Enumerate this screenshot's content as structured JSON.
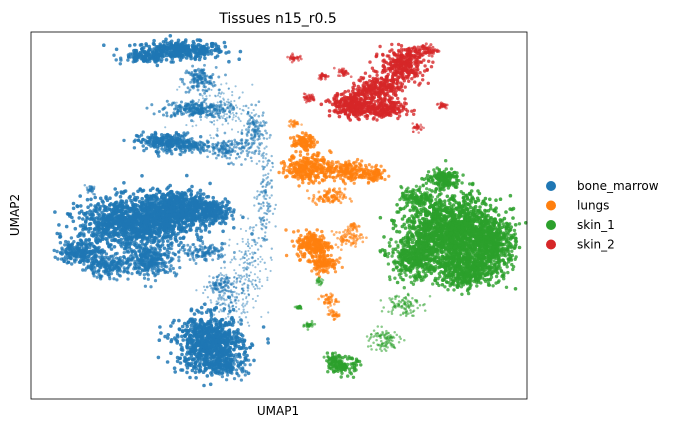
{
  "chart_data": {
    "type": "scatter",
    "title": "Tissues n15_r0.5",
    "xlabel": "UMAP1",
    "ylabel": "UMAP2",
    "xticks": [],
    "yticks": [],
    "xlim": [
      0,
      100
    ],
    "ylim": [
      0,
      100
    ],
    "grid": false,
    "legend_position": "right-outside",
    "legend": [
      {
        "name": "bone_marrow",
        "color": "#1f77b4"
      },
      {
        "name": "lungs",
        "color": "#ff7f0e"
      },
      {
        "name": "skin_1",
        "color": "#2ca02c"
      },
      {
        "name": "skin_2",
        "color": "#d62728"
      }
    ],
    "series": [
      {
        "name": "bone_marrow",
        "color": "#1f77b4",
        "clusters": [
          {
            "x": 30,
            "y": 95,
            "rx": 8,
            "ry": 2.2,
            "density": 1.0
          },
          {
            "x": 23,
            "y": 93,
            "rx": 4,
            "ry": 1.2,
            "density": 0.9
          },
          {
            "x": 34,
            "y": 87,
            "rx": 3,
            "ry": 3,
            "density": 0.6
          },
          {
            "x": 33,
            "y": 79,
            "rx": 6,
            "ry": 2,
            "density": 0.7
          },
          {
            "x": 27,
            "y": 70,
            "rx": 5,
            "ry": 2.2,
            "density": 0.9
          },
          {
            "x": 33,
            "y": 69,
            "rx": 4,
            "ry": 1.5,
            "density": 0.7
          },
          {
            "x": 40,
            "y": 68,
            "rx": 4,
            "ry": 3,
            "density": 0.5
          },
          {
            "x": 45,
            "y": 73,
            "rx": 2,
            "ry": 5,
            "density": 0.45
          },
          {
            "x": 47,
            "y": 55,
            "rx": 1.5,
            "ry": 14,
            "density": 0.3
          },
          {
            "x": 38,
            "y": 79,
            "rx": 6,
            "ry": 6,
            "density": 0.2
          },
          {
            "x": 30,
            "y": 52,
            "rx": 7,
            "ry": 4.5,
            "density": 1.0
          },
          {
            "x": 21,
            "y": 48,
            "rx": 10,
            "ry": 6,
            "density": 1.0
          },
          {
            "x": 37,
            "y": 51,
            "rx": 3,
            "ry": 2.5,
            "density": 0.9
          },
          {
            "x": 10,
            "y": 40,
            "rx": 4,
            "ry": 3,
            "density": 0.9
          },
          {
            "x": 15,
            "y": 36,
            "rx": 4,
            "ry": 2.5,
            "density": 0.8
          },
          {
            "x": 24,
            "y": 38,
            "rx": 5,
            "ry": 4,
            "density": 0.8
          },
          {
            "x": 35,
            "y": 40,
            "rx": 4,
            "ry": 2,
            "density": 0.6
          },
          {
            "x": 38,
            "y": 31,
            "rx": 2,
            "ry": 2,
            "density": 0.5
          },
          {
            "x": 36,
            "y": 15,
            "rx": 6,
            "ry": 7,
            "density": 1.0
          },
          {
            "x": 40,
            "y": 9,
            "rx": 3,
            "ry": 2.5,
            "density": 0.8
          },
          {
            "x": 40,
            "y": 28,
            "rx": 4,
            "ry": 8,
            "density": 0.25
          },
          {
            "x": 44,
            "y": 36,
            "rx": 3,
            "ry": 10,
            "density": 0.2
          },
          {
            "x": 12,
            "y": 57,
            "rx": 1,
            "ry": 1,
            "density": 0.4
          }
        ]
      },
      {
        "name": "lungs",
        "color": "#ff7f0e",
        "clusters": [
          {
            "x": 55,
            "y": 70,
            "rx": 2,
            "ry": 1.8,
            "density": 0.9
          },
          {
            "x": 56,
            "y": 63,
            "rx": 4,
            "ry": 3.5,
            "density": 0.9
          },
          {
            "x": 64,
            "y": 62,
            "rx": 4,
            "ry": 2.5,
            "density": 0.8
          },
          {
            "x": 69,
            "y": 61,
            "rx": 2,
            "ry": 2,
            "density": 0.8
          },
          {
            "x": 60,
            "y": 55,
            "rx": 3,
            "ry": 2,
            "density": 0.6
          },
          {
            "x": 57,
            "y": 42,
            "rx": 3,
            "ry": 3.5,
            "density": 0.9
          },
          {
            "x": 59,
            "y": 37,
            "rx": 2.5,
            "ry": 2.5,
            "density": 0.8
          },
          {
            "x": 64,
            "y": 44,
            "rx": 2.5,
            "ry": 2,
            "density": 0.5
          },
          {
            "x": 65,
            "y": 47,
            "rx": 1,
            "ry": 1,
            "density": 0.4
          },
          {
            "x": 60,
            "y": 27,
            "rx": 1.5,
            "ry": 1.5,
            "density": 0.5
          },
          {
            "x": 61,
            "y": 23,
            "rx": 1,
            "ry": 1,
            "density": 0.5
          },
          {
            "x": 53,
            "y": 75,
            "rx": 1,
            "ry": 1,
            "density": 0.4
          }
        ]
      },
      {
        "name": "skin_1",
        "color": "#2ca02c",
        "clusters": [
          {
            "x": 83,
            "y": 60,
            "rx": 3,
            "ry": 2.5,
            "density": 0.9
          },
          {
            "x": 78,
            "y": 55,
            "rx": 3,
            "ry": 2.5,
            "density": 0.8
          },
          {
            "x": 85,
            "y": 45,
            "rx": 9,
            "ry": 9,
            "density": 1.0
          },
          {
            "x": 93,
            "y": 42,
            "rx": 4,
            "ry": 6,
            "density": 0.9
          },
          {
            "x": 77,
            "y": 38,
            "rx": 4,
            "ry": 5,
            "density": 0.85
          },
          {
            "x": 88,
            "y": 35,
            "rx": 6,
            "ry": 4,
            "density": 0.9
          },
          {
            "x": 75,
            "y": 26,
            "rx": 3,
            "ry": 3,
            "density": 0.4
          },
          {
            "x": 71,
            "y": 16,
            "rx": 3,
            "ry": 3,
            "density": 0.4
          },
          {
            "x": 63,
            "y": 9,
            "rx": 2.5,
            "ry": 2,
            "density": 0.9
          },
          {
            "x": 61,
            "y": 11,
            "rx": 1.5,
            "ry": 1.2,
            "density": 0.7
          },
          {
            "x": 56,
            "y": 20,
            "rx": 0.8,
            "ry": 0.8,
            "density": 0.5
          },
          {
            "x": 54,
            "y": 25,
            "rx": 0.6,
            "ry": 0.6,
            "density": 0.4
          },
          {
            "x": 58,
            "y": 32,
            "rx": 0.8,
            "ry": 0.8,
            "density": 0.3
          }
        ]
      },
      {
        "name": "skin_2",
        "color": "#d62728",
        "clusters": [
          {
            "x": 75,
            "y": 91,
            "rx": 4,
            "ry": 4,
            "density": 0.9
          },
          {
            "x": 70,
            "y": 85,
            "rx": 4,
            "ry": 3,
            "density": 0.9
          },
          {
            "x": 65,
            "y": 80,
            "rx": 4,
            "ry": 3,
            "density": 1.0
          },
          {
            "x": 71,
            "y": 79,
            "rx": 4,
            "ry": 2.5,
            "density": 0.9
          },
          {
            "x": 79,
            "y": 95,
            "rx": 3,
            "ry": 1.5,
            "density": 0.7
          },
          {
            "x": 83,
            "y": 80,
            "rx": 1,
            "ry": 0.8,
            "density": 0.5
          },
          {
            "x": 78,
            "y": 74,
            "rx": 1,
            "ry": 1,
            "density": 0.4
          },
          {
            "x": 63,
            "y": 89,
            "rx": 1,
            "ry": 1,
            "density": 0.5
          },
          {
            "x": 59,
            "y": 88,
            "rx": 1,
            "ry": 0.8,
            "density": 0.5
          },
          {
            "x": 53,
            "y": 93,
            "rx": 1,
            "ry": 0.8,
            "density": 0.5
          },
          {
            "x": 56,
            "y": 82,
            "rx": 1.2,
            "ry": 1,
            "density": 0.5
          }
        ]
      }
    ]
  }
}
